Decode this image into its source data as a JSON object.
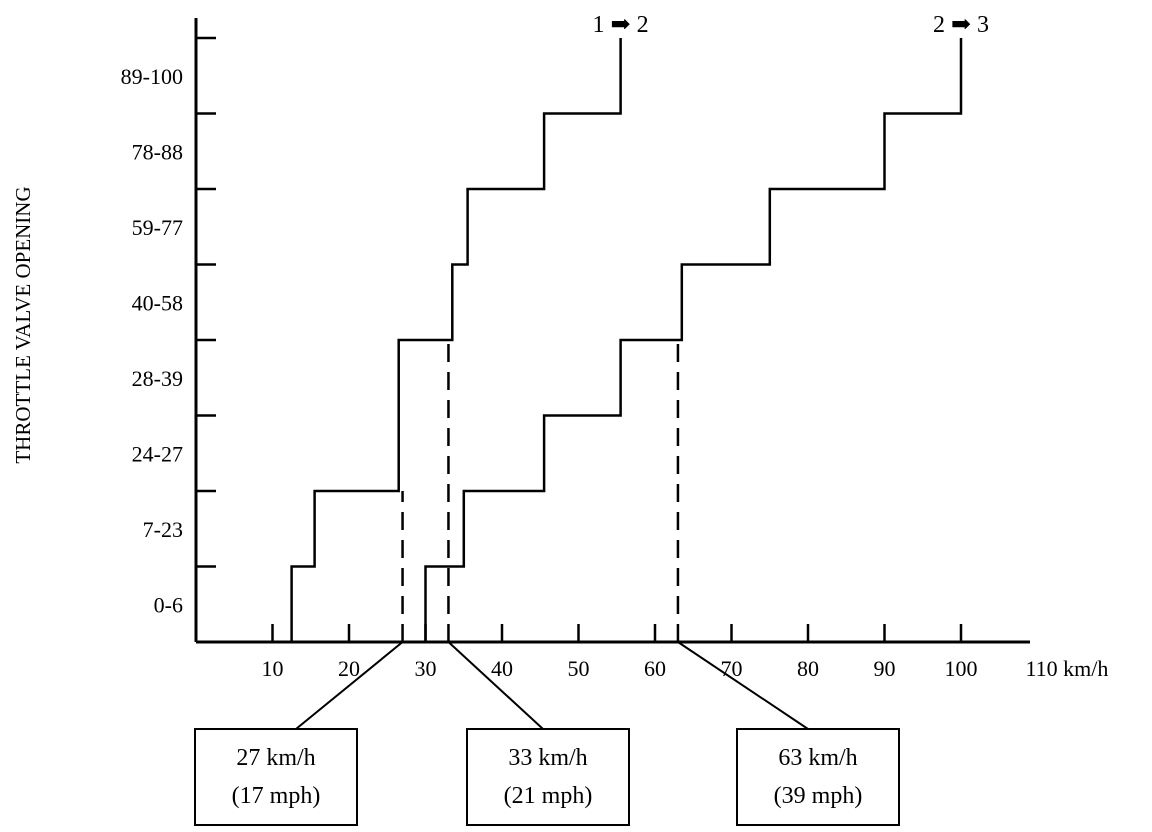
{
  "chart_data": {
    "type": "line",
    "title": "",
    "ylabel": "THROTTLE VALVE OPENING",
    "xlabel": "",
    "x_unit": "km/h",
    "x_ticks": [
      10,
      20,
      30,
      40,
      50,
      60,
      70,
      80,
      90,
      100,
      110
    ],
    "x_tick_labels": [
      "10",
      "20",
      "30",
      "40",
      "50",
      "60",
      "70",
      "80",
      "90",
      "100",
      "110 km/h"
    ],
    "xlim": [
      0,
      110
    ],
    "y_categories": [
      "0-6",
      "7-23",
      "24-27",
      "28-39",
      "40-58",
      "59-77",
      "78-88",
      "89-100"
    ],
    "series": [
      {
        "name": "1 ➡ 2",
        "points": [
          [
            12.5,
            0
          ],
          [
            12.5,
            1
          ],
          [
            15.5,
            1
          ],
          [
            15.5,
            2
          ],
          [
            26.5,
            2
          ],
          [
            26.5,
            4
          ],
          [
            33.5,
            4
          ],
          [
            33.5,
            5
          ],
          [
            35.5,
            5
          ],
          [
            35.5,
            6
          ],
          [
            45.5,
            6
          ],
          [
            45.5,
            7
          ],
          [
            55.5,
            7
          ],
          [
            55.5,
            8
          ]
        ]
      },
      {
        "name": "2 ➡ 3",
        "points": [
          [
            30,
            0
          ],
          [
            30,
            1
          ],
          [
            35,
            1
          ],
          [
            35,
            2
          ],
          [
            45.5,
            2
          ],
          [
            45.5,
            3
          ],
          [
            55.5,
            3
          ],
          [
            55.5,
            4
          ],
          [
            63.5,
            4
          ],
          [
            63.5,
            5
          ],
          [
            75,
            5
          ],
          [
            75,
            6
          ],
          [
            90,
            6
          ],
          [
            90,
            7
          ],
          [
            100,
            7
          ],
          [
            100,
            8
          ]
        ]
      }
    ],
    "callouts": [
      {
        "x": 27,
        "line1": "27 km/h",
        "line2": "(17 mph)"
      },
      {
        "x": 33,
        "line1": "33 km/h",
        "line2": "(21 mph)"
      },
      {
        "x": 63,
        "line1": "63 km/h",
        "line2": "(39 mph)"
      }
    ]
  }
}
